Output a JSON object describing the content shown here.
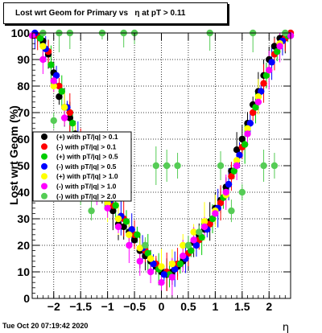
{
  "title": "Lost wrt Geom for Primary vs   η at pT > 0.11",
  "timestamp": "Tue Oct 20 07:19:42 2020",
  "chart_data": {
    "type": "scatter",
    "title": "Lost wrt Geom for Primary vs   η at pT > 0.11",
    "xlabel": "η",
    "ylabel": "Lost wrt Geom (%)",
    "xlim": [
      -2.4,
      2.4
    ],
    "ylim": [
      0,
      100
    ],
    "xticks": [
      -2,
      -1.5,
      -1,
      -0.5,
      0,
      0.5,
      1,
      1.5,
      2
    ],
    "xtick_labels": [
      "−2",
      "−1.5",
      "−1",
      "−0.5",
      "0",
      "0.5",
      "1",
      "1.5",
      "2"
    ],
    "yticks": [
      0,
      10,
      20,
      30,
      40,
      50,
      60,
      70,
      80,
      90,
      100
    ],
    "grid": true,
    "legend_position": "middle-left",
    "series": [
      {
        "name": "(+) with pT/|q| > 0.1",
        "color": "#000000",
        "x": [
          -2.3,
          -2.2,
          -2.1,
          -2.0,
          -1.9,
          -1.8,
          -1.7,
          -1.6,
          -1.5,
          -1.4,
          -1.3,
          -1.2,
          -1.1,
          -1.0,
          -0.9,
          -0.8,
          -0.7,
          -0.6,
          -0.5,
          -0.4,
          -0.3,
          -0.2,
          -0.1,
          0.0,
          0.1,
          0.2,
          0.3,
          0.4,
          0.5,
          0.6,
          0.7,
          0.8,
          0.9,
          1.0,
          1.1,
          1.2,
          1.3,
          1.4,
          1.5,
          1.6,
          1.7,
          1.8,
          1.9,
          2.0,
          2.1,
          2.2,
          2.3
        ],
        "y": [
          99,
          97,
          92,
          85,
          76,
          72,
          68,
          62,
          55,
          50,
          46,
          44,
          40,
          36,
          33,
          28,
          27,
          25,
          22,
          18,
          16,
          14,
          12,
          10,
          9,
          10,
          12,
          14,
          17,
          21,
          24,
          26,
          29,
          34,
          37,
          42,
          48,
          56,
          60,
          66,
          73,
          78,
          84,
          90,
          95,
          98,
          99
        ]
      },
      {
        "name": "(-) with pT/|q| > 0.1",
        "color": "#ff0000",
        "x": [
          -2.3,
          -2.1,
          -1.9,
          -1.7,
          -1.5,
          -1.3,
          -1.1,
          -0.9,
          -0.7,
          -0.5,
          -0.3,
          -0.1,
          0.1,
          0.3,
          0.5,
          0.7,
          0.9,
          1.1,
          1.3,
          1.5,
          1.7,
          1.9,
          2.1,
          2.3,
          2.4
        ],
        "y": [
          99,
          93,
          80,
          70,
          58,
          47,
          41,
          35,
          30,
          24,
          18,
          13,
          10,
          13,
          17,
          22,
          28,
          36,
          46,
          57,
          70,
          81,
          92,
          98,
          100
        ]
      },
      {
        "name": "(+) with pT/|q| > 0.5",
        "color": "#00cc00",
        "x": [
          -2.25,
          -2.05,
          -1.85,
          -1.65,
          -1.45,
          -1.25,
          -1.05,
          -0.85,
          -0.65,
          -0.45,
          -0.25,
          -0.05,
          0.15,
          0.35,
          0.55,
          0.75,
          0.95,
          1.15,
          1.35,
          1.55,
          1.75,
          1.95,
          2.15,
          2.35
        ],
        "y": [
          98,
          88,
          78,
          66,
          54,
          47,
          41,
          35,
          29,
          24,
          17,
          11,
          9,
          13,
          18,
          23,
          30,
          38,
          48,
          58,
          72,
          84,
          93,
          99
        ]
      },
      {
        "name": "(-) with pT/|q| > 0.5",
        "color": "#0000ff",
        "x": [
          -2.35,
          -2.15,
          -1.95,
          -1.75,
          -1.55,
          -1.35,
          -1.15,
          -0.95,
          -0.75,
          -0.55,
          -0.35,
          -0.15,
          0.05,
          0.25,
          0.45,
          0.65,
          0.85,
          1.05,
          1.25,
          1.45,
          1.65,
          1.85,
          2.05,
          2.25,
          2.4
        ],
        "y": [
          100,
          94,
          84,
          72,
          60,
          50,
          43,
          37,
          31,
          26,
          19,
          13,
          9,
          11,
          15,
          20,
          26,
          34,
          43,
          54,
          66,
          78,
          89,
          97,
          99
        ]
      },
      {
        "name": "(+) with pT/|q| > 1.0",
        "color": "#ffff00",
        "x": [
          -2.2,
          -2.0,
          -1.8,
          -1.6,
          -1.4,
          -1.2,
          -1.0,
          -0.8,
          -0.6,
          -0.4,
          -0.2,
          0.0,
          0.2,
          0.4,
          0.6,
          0.8,
          1.0,
          1.2,
          1.4,
          1.6,
          1.8,
          2.0,
          2.2
        ],
        "y": [
          95,
          80,
          72,
          61,
          48,
          40,
          36,
          30,
          24,
          19,
          15,
          12,
          13,
          20,
          25,
          29,
          33,
          39,
          52,
          64,
          76,
          86,
          96
        ]
      },
      {
        "name": "(-) with pT/|q| > 1.0",
        "color": "#ff00ff",
        "x": [
          -2.4,
          -2.2,
          -2.0,
          -1.8,
          -1.6,
          -1.4,
          -1.2,
          -1.0,
          -0.8,
          -0.6,
          -0.4,
          -0.2,
          0.0,
          0.2,
          0.4,
          0.6,
          0.8,
          1.0,
          1.2,
          1.4,
          1.6,
          1.8,
          2.0,
          2.2,
          2.4
        ],
        "y": [
          99,
          90,
          82,
          68,
          56,
          45,
          40,
          34,
          27,
          20,
          14,
          10,
          6,
          8,
          16,
          22,
          27,
          32,
          40,
          50,
          62,
          74,
          86,
          95,
          99
        ]
      },
      {
        "name": "(-) with pT/|q| > 2.0",
        "color": "#55cc55",
        "x": [
          -2.2,
          -2.0,
          -1.9,
          -1.7,
          -1.5,
          -1.3,
          -1.1,
          -0.9,
          -0.7,
          -0.5,
          -0.3,
          -0.1,
          0.1,
          0.3,
          0.5,
          0.7,
          0.9,
          1.1,
          1.3,
          1.5,
          1.7,
          1.9,
          2.1,
          2.3
        ],
        "y": [
          100,
          67,
          100,
          100,
          40,
          33,
          100,
          40,
          100,
          100,
          20,
          50,
          50,
          50,
          20,
          25,
          100,
          50,
          33,
          40,
          100,
          50,
          50,
          100
        ]
      }
    ]
  }
}
